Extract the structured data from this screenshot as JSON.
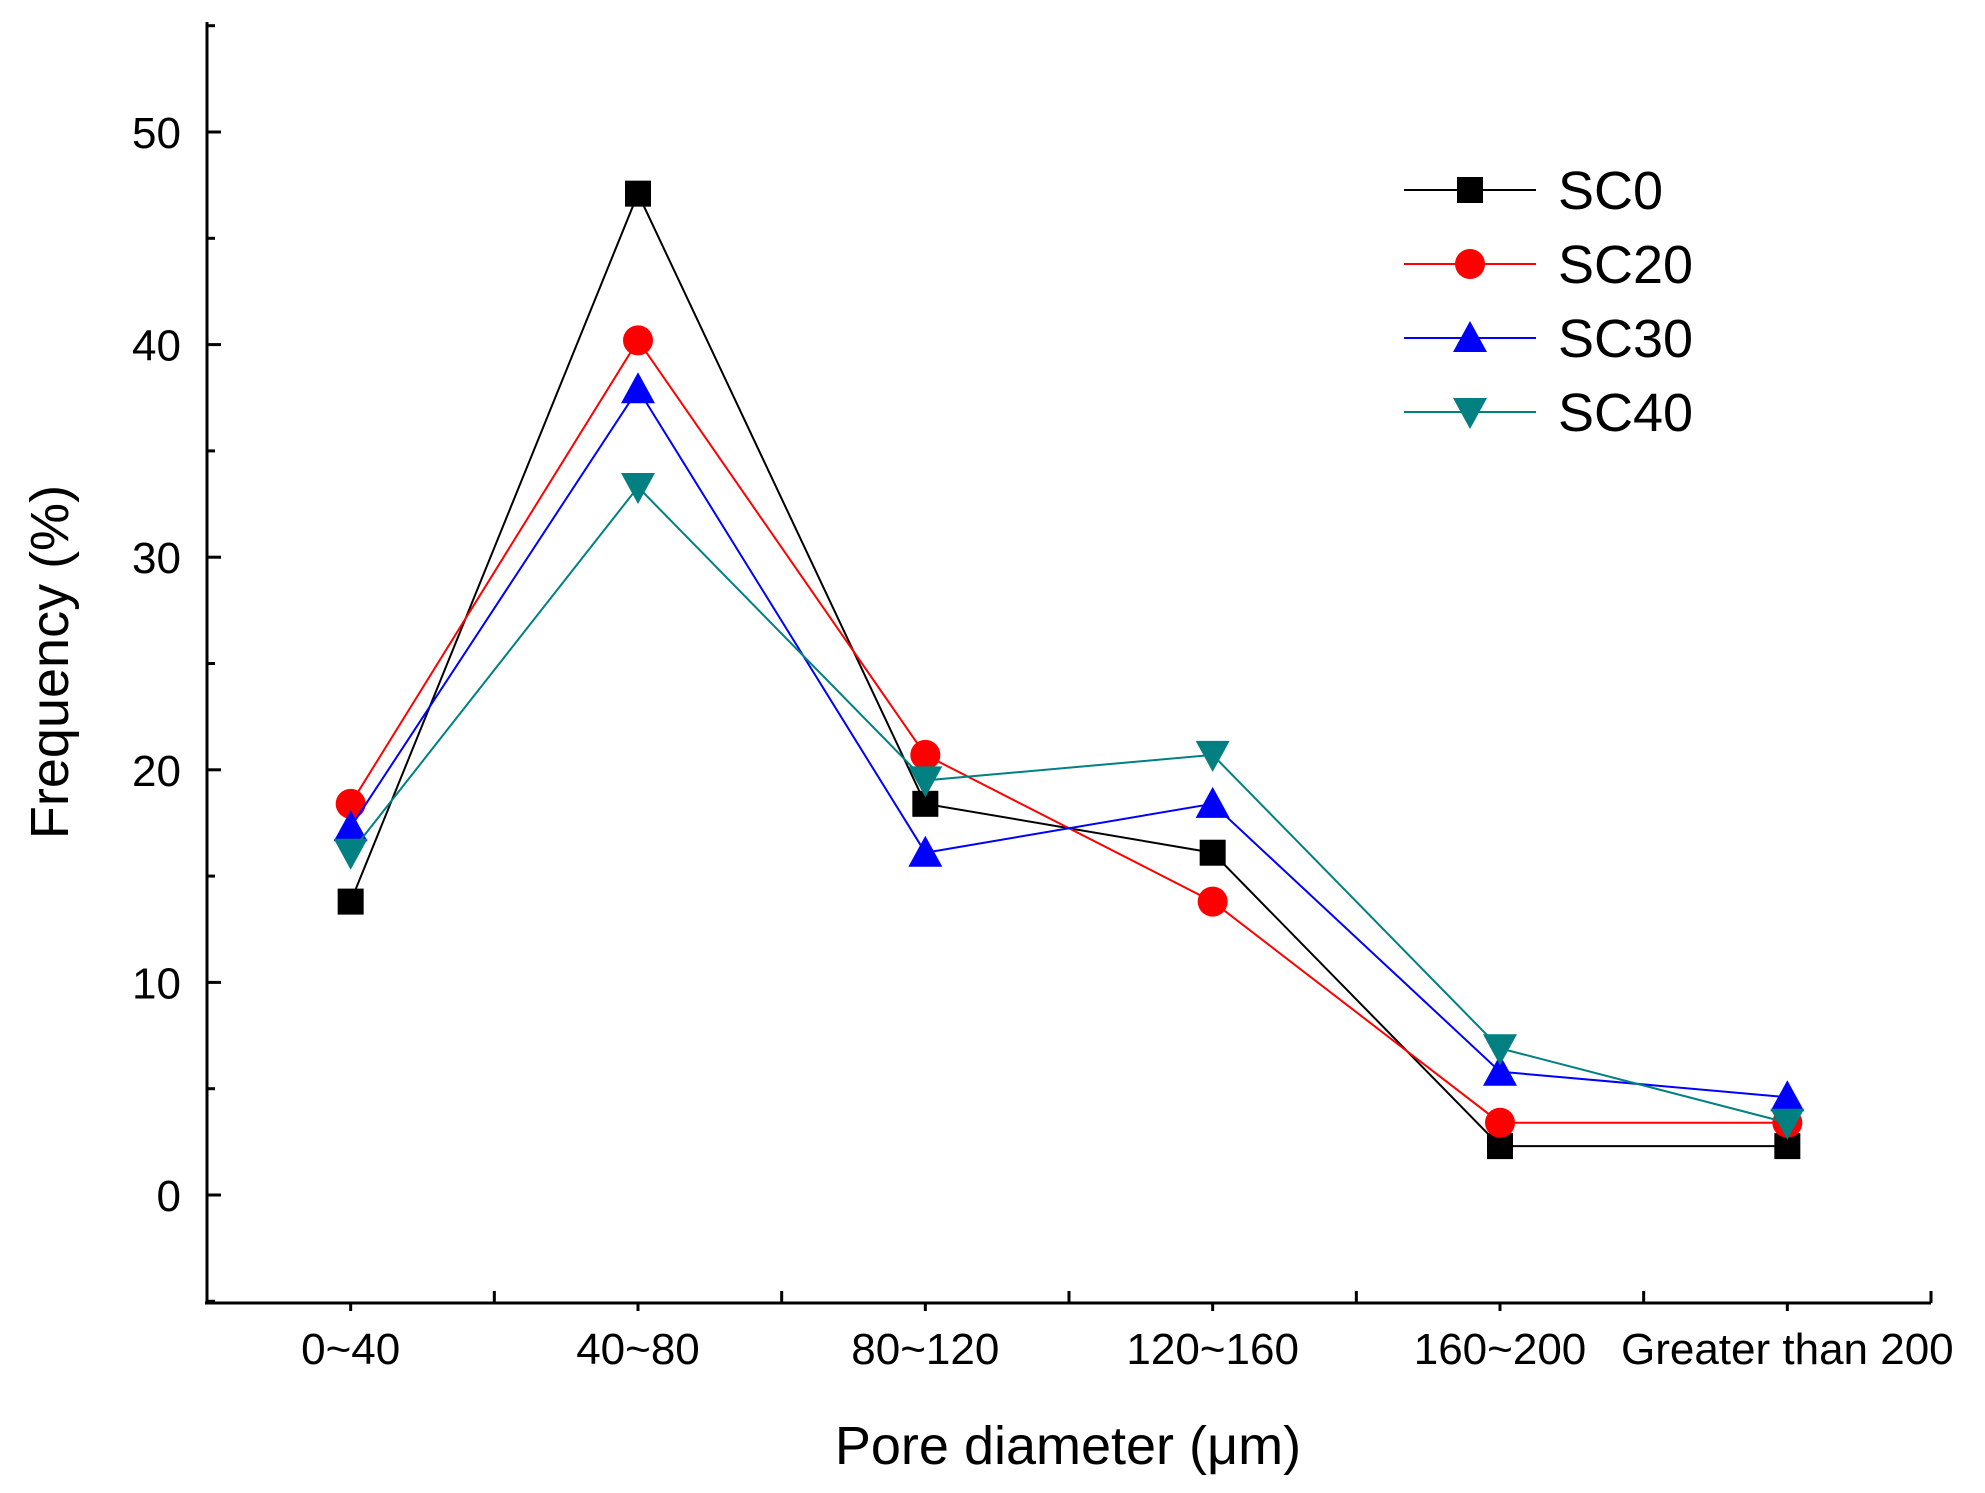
{
  "chart_data": {
    "type": "line",
    "title": "",
    "xlabel": "Pore diameter (μm)",
    "ylabel": "Frequency (%)",
    "categories": [
      "0~40",
      "40~80",
      "80~120",
      "120~160",
      "160~200",
      "Greater than 200"
    ],
    "ylim": [
      -5,
      55
    ],
    "yticks": [
      0,
      10,
      20,
      30,
      40,
      50
    ],
    "ytick_labels": [
      "0",
      "10",
      "20",
      "30",
      "40",
      "50"
    ],
    "grid": false,
    "legend_position": "top-right",
    "series": [
      {
        "name": "SC0",
        "color": "#000000",
        "marker": "square",
        "values": [
          13.8,
          47.1,
          18.4,
          16.1,
          2.3,
          2.3
        ]
      },
      {
        "name": "SC20",
        "color": "#ff0000",
        "marker": "circle",
        "values": [
          18.4,
          40.2,
          20.7,
          13.8,
          3.4,
          3.4
        ]
      },
      {
        "name": "SC30",
        "color": "#0000ff",
        "marker": "triangle-up",
        "values": [
          17.3,
          37.9,
          16.1,
          18.4,
          5.8,
          4.6
        ]
      },
      {
        "name": "SC40",
        "color": "#008080",
        "marker": "triangle-down",
        "values": [
          16.1,
          33.3,
          19.5,
          20.7,
          6.9,
          3.4
        ]
      }
    ]
  }
}
